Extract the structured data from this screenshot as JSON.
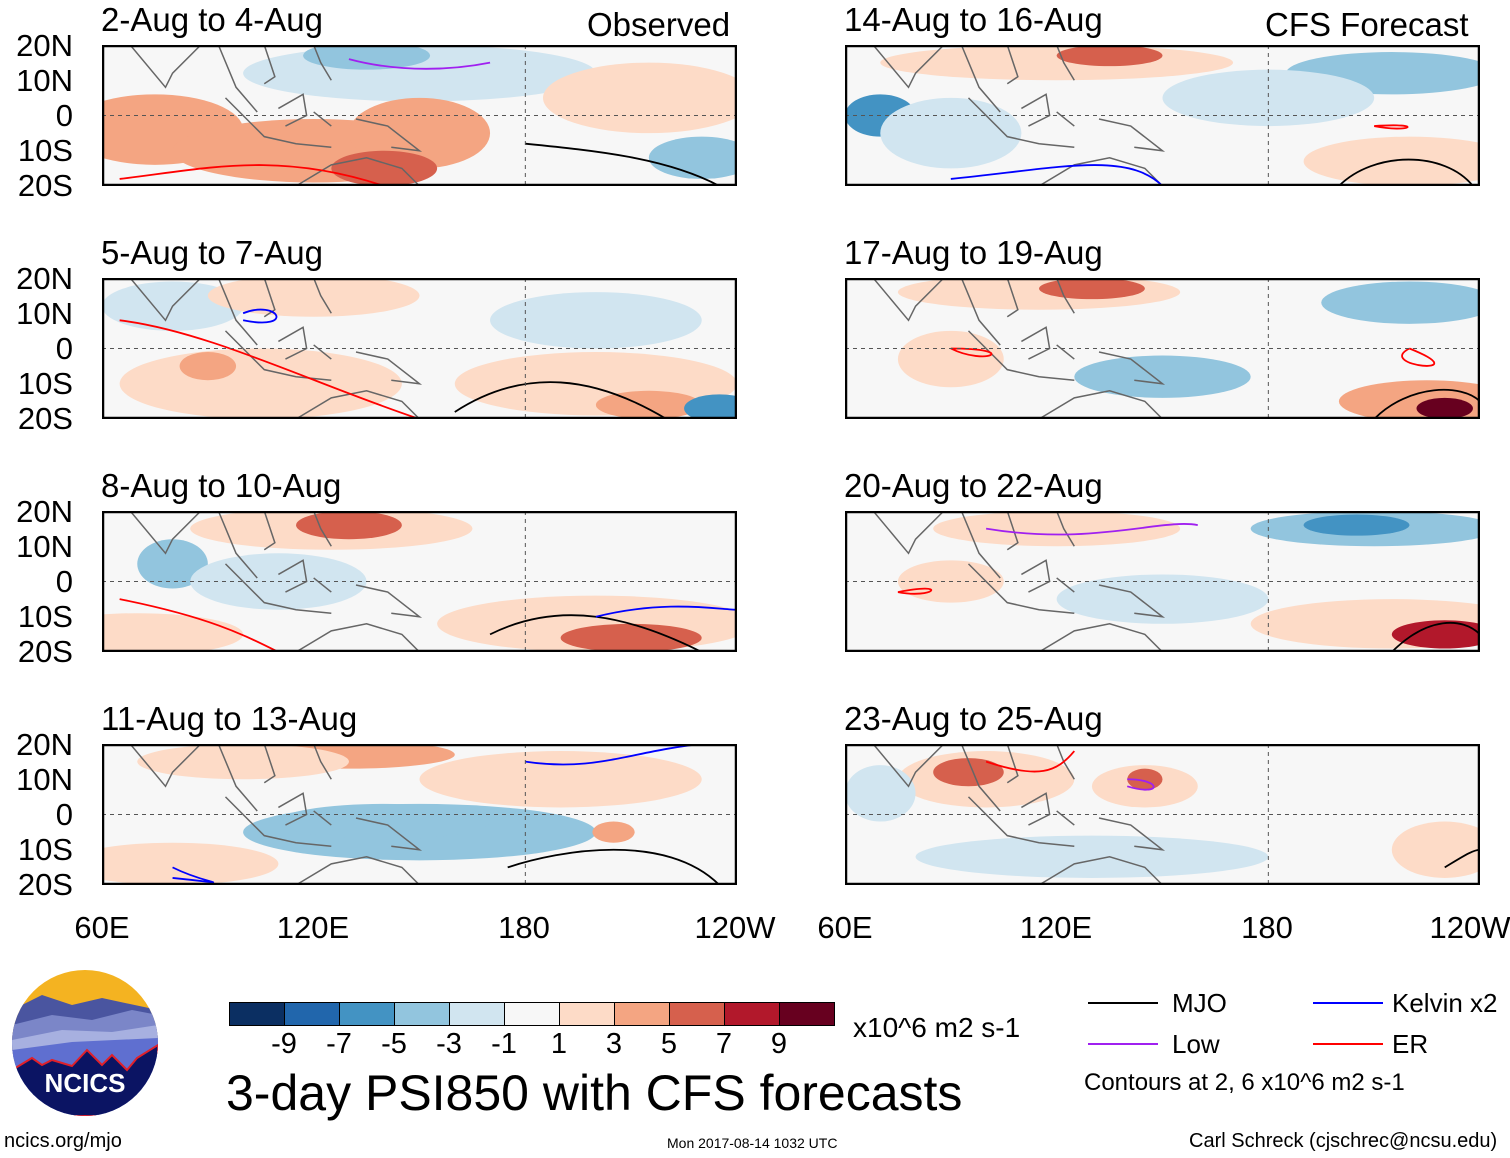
{
  "figure": {
    "title": "3-day PSI850 with CFS forecasts",
    "units": "x10^6 m2 s-1",
    "observed_label": "Observed",
    "forecast_label": "CFS Forecast",
    "site": "ncics.org/mjo",
    "timestamp": "Mon 2017-08-14 1032 UTC",
    "author": "Carl Schreck (cjschrec@ncsu.edu)",
    "logo_text": "NCICS"
  },
  "axes": {
    "lat_labels": [
      "20N",
      "10N",
      "0",
      "10S",
      "20S"
    ],
    "lon_labels": [
      "60E",
      "120E",
      "180",
      "120W"
    ]
  },
  "panels_left": [
    {
      "title": "2-Aug to 4-Aug"
    },
    {
      "title": "5-Aug to 7-Aug"
    },
    {
      "title": "8-Aug to 10-Aug"
    },
    {
      "title": "11-Aug to 13-Aug"
    }
  ],
  "panels_right": [
    {
      "title": "14-Aug to 16-Aug"
    },
    {
      "title": "17-Aug to 19-Aug"
    },
    {
      "title": "20-Aug to 22-Aug"
    },
    {
      "title": "23-Aug to 25-Aug"
    }
  ],
  "colorbar": {
    "ticks": [
      "-9",
      "-7",
      "-5",
      "-3",
      "-1",
      "1",
      "3",
      "5",
      "7",
      "9"
    ],
    "colors": [
      "#0b2f62",
      "#2166ac",
      "#4393c3",
      "#92c5de",
      "#d1e5f0",
      "#f7f7f7",
      "#fddbc7",
      "#f4a582",
      "#d6604d",
      "#b2182b",
      "#67001f"
    ]
  },
  "legend": {
    "items": [
      {
        "label": "MJO",
        "color": "#000000"
      },
      {
        "label": "Kelvin x2",
        "color": "#0000ff"
      },
      {
        "label": "Low",
        "color": "#a020f0"
      },
      {
        "label": "ER",
        "color": "#ff0000"
      }
    ],
    "note": "Contours at 2, 6 x10^6 m2 s-1"
  }
}
